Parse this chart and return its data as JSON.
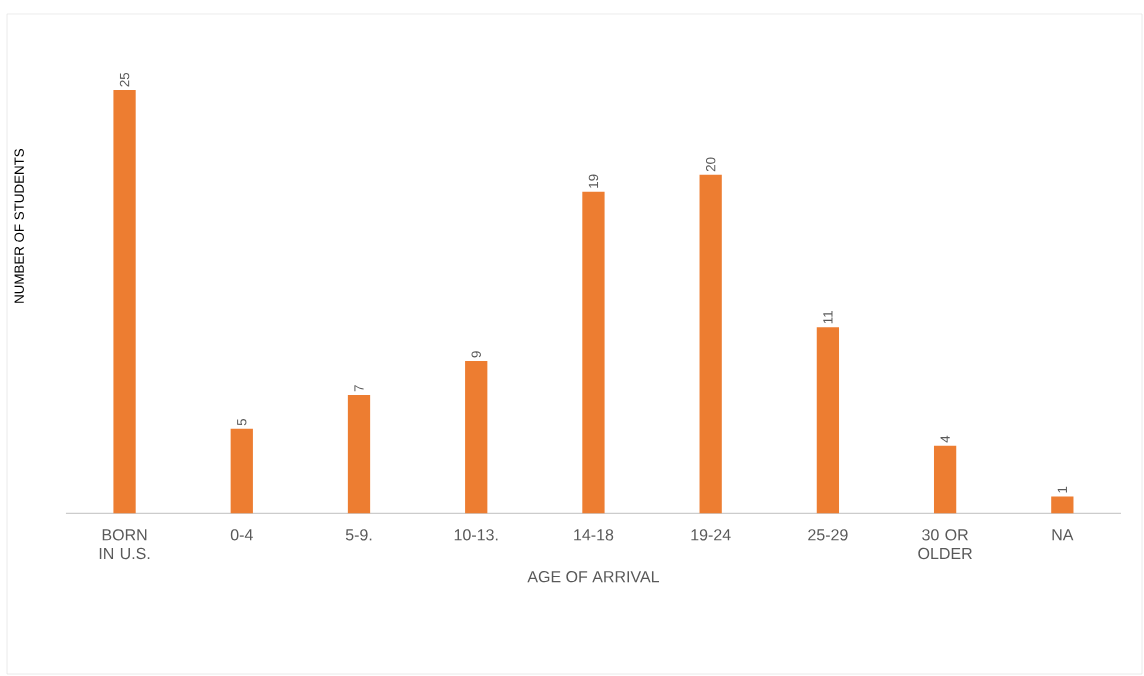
{
  "chart_data": {
    "type": "bar",
    "xlabel": "AGE OF ARRIVAL",
    "ylabel": "NUMBER OF STUDENTS",
    "categories": [
      "BORN IN U.S.",
      "0-4",
      "5-9.",
      "10-13.",
      "14-18",
      "19-24",
      "25-29",
      "30 OR OLDER",
      "NA"
    ],
    "values": [
      25,
      5,
      7,
      9,
      19,
      20,
      11,
      4,
      1
    ],
    "color": "#ed7d31",
    "data_labels": true
  }
}
